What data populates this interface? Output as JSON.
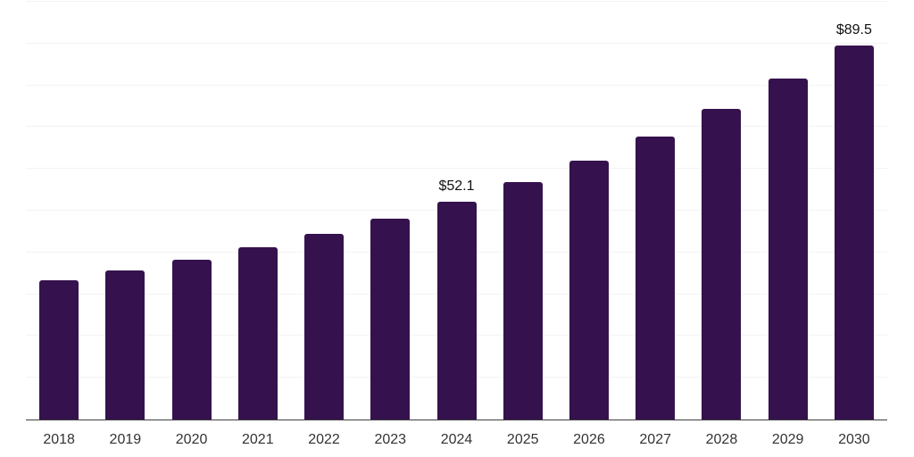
{
  "chart_data": {
    "type": "bar",
    "title": "",
    "xlabel": "",
    "ylabel": "",
    "categories": [
      "2018",
      "2019",
      "2020",
      "2021",
      "2022",
      "2023",
      "2024",
      "2025",
      "2026",
      "2027",
      "2028",
      "2029",
      "2030"
    ],
    "values": [
      33.3,
      35.6,
      38.2,
      41.2,
      44.4,
      48.0,
      52.1,
      56.9,
      62.0,
      67.8,
      74.3,
      81.6,
      89.5
    ],
    "labeled_points": [
      {
        "category": "2024",
        "label": "$52.1"
      },
      {
        "category": "2030",
        "label": "$89.5"
      }
    ],
    "ylim": [
      0,
      100
    ],
    "gridline_step": 10,
    "grid": "horizontal-only, no y tick labels",
    "legend": "none",
    "colors": {
      "bar": "#35124d",
      "axis": "#3f3f3f",
      "gridline": "#f3f3f3",
      "tick_label": "#333333",
      "data_label": "#111111",
      "background": "#ffffff"
    }
  }
}
